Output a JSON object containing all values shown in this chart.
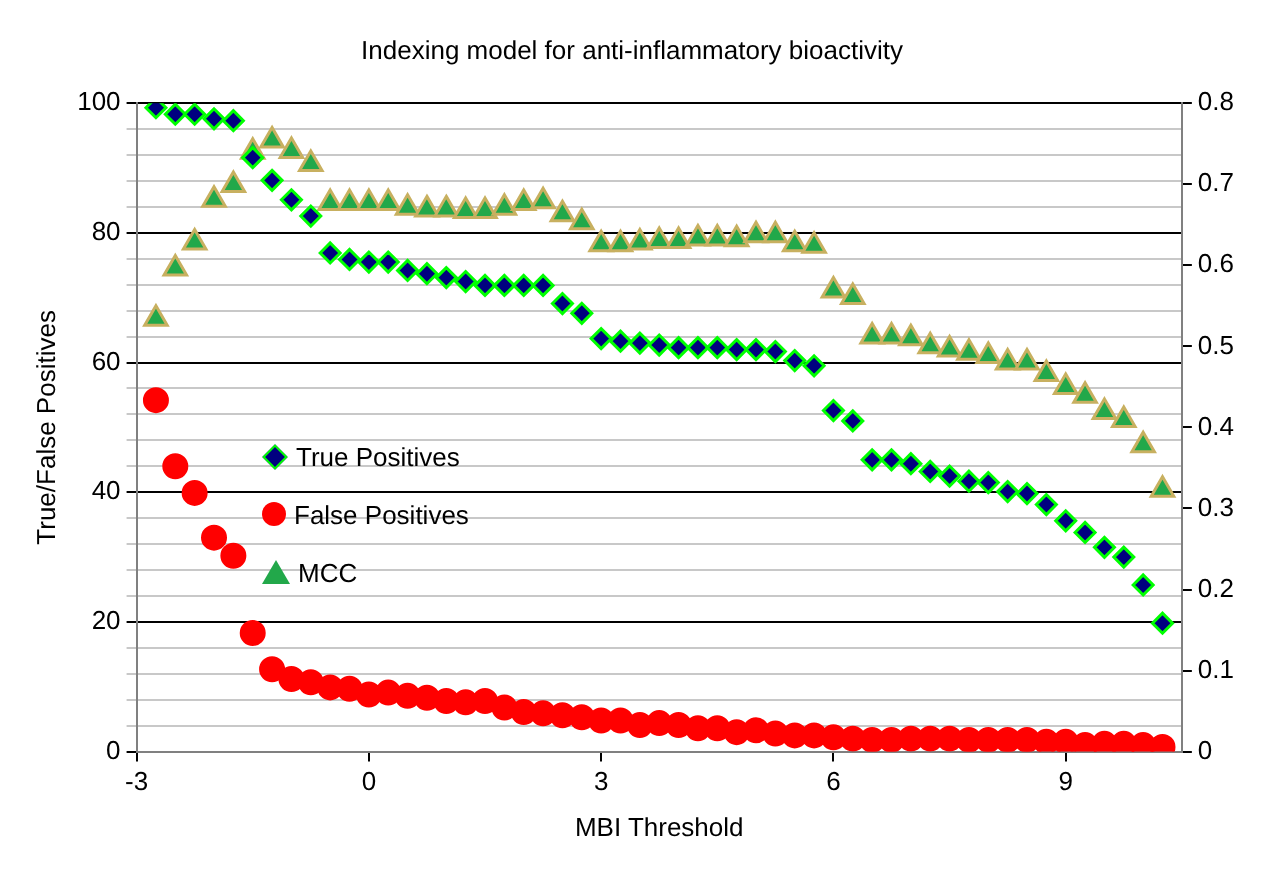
{
  "chart_data": {
    "type": "scatter",
    "title": "Indexing model for anti-inflammatory bioactivity",
    "xlabel": "MBI Threshold",
    "ylabel": "True/False Positives",
    "x": [
      -2.75,
      -2.5,
      -2.25,
      -2,
      -1.75,
      -1.5,
      -1.25,
      -1,
      -0.75,
      -0.5,
      -0.25,
      0,
      0.25,
      0.5,
      0.75,
      1,
      1.25,
      1.5,
      1.75,
      2,
      2.25,
      2.5,
      2.75,
      3,
      3.25,
      3.5,
      3.75,
      4,
      4.25,
      4.5,
      4.75,
      5,
      5.25,
      5.5,
      5.75,
      6,
      6.25,
      6.5,
      6.75,
      7,
      7.25,
      7.5,
      7.75,
      8,
      8.25,
      8.5,
      8.75,
      9,
      9.25,
      9.5,
      9.75,
      10,
      10.25
    ],
    "series": [
      {
        "name": "True Positives",
        "marker": "diamond",
        "color": "#000080",
        "values": [
          99.3,
          98.3,
          98.3,
          97.6,
          97.3,
          91.6,
          88.1,
          85.1,
          82.6,
          76.9,
          75.9,
          75.5,
          75.5,
          74.2,
          73.7,
          73.1,
          72.5,
          71.9,
          71.9,
          71.9,
          71.9,
          69.1,
          67.6,
          63.7,
          63.3,
          63.0,
          62.7,
          62.3,
          62.3,
          62.3,
          62.0,
          62.0,
          61.7,
          60.3,
          59.5,
          52.6,
          51.0,
          45.0,
          45.0,
          44.4,
          43.2,
          42.5,
          41.7,
          41.5,
          40.1,
          39.8,
          38.1,
          35.6,
          33.8,
          31.5,
          30.0,
          25.7,
          19.8
        ]
      },
      {
        "name": "False Positives",
        "marker": "circle",
        "color": "#ff0000",
        "values": [
          54.2,
          44.0,
          39.9,
          33.0,
          30.2,
          18.3,
          12.7,
          11.2,
          10.7,
          9.9,
          9.7,
          8.8,
          9.1,
          8.6,
          8.3,
          7.8,
          7.6,
          7.8,
          6.8,
          6.1,
          5.9,
          5.6,
          5.3,
          4.8,
          4.8,
          4.1,
          4.4,
          4.1,
          3.6,
          3.6,
          3.0,
          3.3,
          2.8,
          2.5,
          2.5,
          2.2,
          2.0,
          1.8,
          1.8,
          2.0,
          2.0,
          2.0,
          1.8,
          1.8,
          1.8,
          1.8,
          1.5,
          1.5,
          1.0,
          1.2,
          1.2,
          1.0,
          0.7
        ]
      },
      {
        "name": "MCC",
        "marker": "triangle",
        "color": "#22a84a",
        "axis": "y2",
        "values": [
          0.534,
          0.596,
          0.628,
          0.681,
          0.699,
          0.74,
          0.754,
          0.741,
          0.725,
          0.677,
          0.677,
          0.677,
          0.677,
          0.671,
          0.669,
          0.669,
          0.667,
          0.667,
          0.671,
          0.677,
          0.679,
          0.663,
          0.653,
          0.626,
          0.626,
          0.628,
          0.63,
          0.63,
          0.633,
          0.633,
          0.632,
          0.637,
          0.637,
          0.626,
          0.624,
          0.569,
          0.561,
          0.512,
          0.512,
          0.51,
          0.5,
          0.496,
          0.492,
          0.488,
          0.48,
          0.48,
          0.466,
          0.45,
          0.439,
          0.419,
          0.409,
          0.378,
          0.323
        ]
      }
    ],
    "xlim": [
      -3,
      10.5
    ],
    "xticks": [
      -3,
      0,
      3,
      6,
      9
    ],
    "ylim": [
      0,
      100
    ],
    "yticks": [
      0,
      {
        "value": 4,
        "label": null
      },
      {
        "value": 8,
        "label": null
      },
      {
        "value": 12,
        "label": null
      },
      {
        "value": 16,
        "label": null
      },
      20,
      {
        "value": 24,
        "label": null
      },
      {
        "value": 28,
        "label": null
      },
      {
        "value": 32,
        "label": null
      },
      {
        "value": 36,
        "label": null
      },
      40,
      {
        "value": 44,
        "label": null
      },
      {
        "value": 48,
        "label": null
      },
      {
        "value": 52,
        "label": null
      },
      {
        "value": 56,
        "label": null
      },
      60,
      {
        "value": 64,
        "label": null
      },
      {
        "value": 68,
        "label": null
      },
      {
        "value": 72,
        "label": null
      },
      {
        "value": 76,
        "label": null
      },
      80,
      {
        "value": 84,
        "label": null
      },
      {
        "value": 88,
        "label": null
      },
      {
        "value": 92,
        "label": null
      },
      {
        "value": 96,
        "label": null
      },
      100
    ],
    "y2lim": [
      0,
      0.8
    ],
    "y2ticks": [
      0,
      0.1,
      0.2,
      0.3,
      0.4,
      0.5,
      0.6,
      0.7,
      0.8
    ],
    "grid": "y",
    "legend": "left"
  }
}
